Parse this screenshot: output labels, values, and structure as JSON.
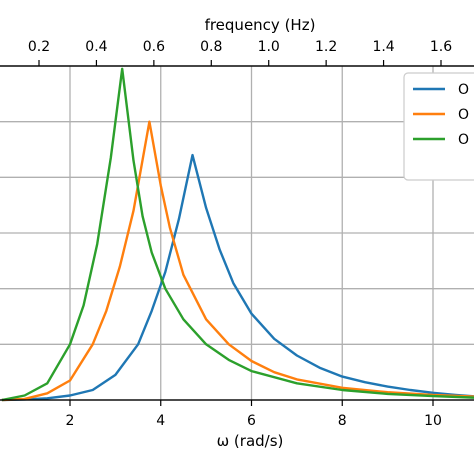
{
  "chart_data": {
    "type": "line",
    "xlabel": "ω (rad/s)",
    "x2label": "frequency (Hz)",
    "xlim": [
      0.5,
      11
    ],
    "ylim": [
      0,
      6
    ],
    "x_ticks": [
      2,
      4,
      6,
      8,
      10
    ],
    "x_tick_labels": [
      "2",
      "4",
      "6",
      "8",
      "10"
    ],
    "x2_ticks": [
      0.2,
      0.4,
      0.6,
      0.8,
      1.0,
      1.2,
      1.4,
      1.6
    ],
    "x2_tick_labels": [
      "0.2",
      "0.4",
      "0.6",
      "0.8",
      "1.0",
      "1.2",
      "1.4",
      "1.6"
    ],
    "y_ticks": [
      1,
      2,
      3,
      4,
      5,
      6
    ],
    "grid": true,
    "legend": {
      "position": "top-right",
      "labels": [
        "O",
        "O",
        "O"
      ]
    },
    "series": [
      {
        "color": "#1f77b4",
        "peak_x": 4.7,
        "peak_y": 4.4,
        "x": [
          0.5,
          1.0,
          1.5,
          2.0,
          2.5,
          3.0,
          3.5,
          3.8,
          4.1,
          4.4,
          4.7,
          5.0,
          5.3,
          5.6,
          6.0,
          6.5,
          7.0,
          7.5,
          8.0,
          8.5,
          9.0,
          9.5,
          10.0,
          10.5,
          11.0
        ],
        "y": [
          0.0,
          0.01,
          0.03,
          0.08,
          0.18,
          0.45,
          1.0,
          1.6,
          2.3,
          3.25,
          4.4,
          3.45,
          2.7,
          2.1,
          1.55,
          1.1,
          0.8,
          0.58,
          0.42,
          0.32,
          0.24,
          0.18,
          0.13,
          0.09,
          0.06
        ]
      },
      {
        "color": "#ff7f0e",
        "peak_x": 3.75,
        "peak_y": 5.0,
        "x": [
          0.5,
          1.0,
          1.5,
          2.0,
          2.5,
          2.8,
          3.1,
          3.4,
          3.75,
          4.0,
          4.2,
          4.5,
          5.0,
          5.5,
          6.0,
          6.5,
          7.0,
          8.0,
          9.0,
          10.0,
          11.0
        ],
        "y": [
          0.0,
          0.02,
          0.12,
          0.35,
          1.0,
          1.6,
          2.4,
          3.4,
          5.0,
          3.85,
          3.1,
          2.25,
          1.45,
          1.0,
          0.7,
          0.5,
          0.37,
          0.22,
          0.14,
          0.09,
          0.06
        ]
      },
      {
        "color": "#2ca02c",
        "peak_x": 3.15,
        "peak_y": 5.95,
        "x": [
          0.5,
          1.0,
          1.5,
          2.0,
          2.3,
          2.6,
          2.9,
          3.15,
          3.4,
          3.6,
          3.8,
          4.1,
          4.5,
          5.0,
          5.5,
          6.0,
          7.0,
          8.0,
          9.0,
          10.0,
          11.0
        ],
        "y": [
          0.0,
          0.08,
          0.3,
          1.0,
          1.7,
          2.8,
          4.35,
          5.95,
          4.3,
          3.3,
          2.65,
          2.0,
          1.45,
          1.0,
          0.72,
          0.52,
          0.3,
          0.18,
          0.11,
          0.07,
          0.04
        ]
      }
    ]
  }
}
